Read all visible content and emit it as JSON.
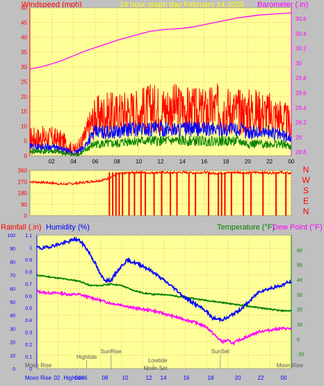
{
  "header": {
    "left_label": "Windspeed (mph)",
    "center_title": "24 hour graph day   February 14 2020",
    "right_label": "Barometer (.in)"
  },
  "colors": {
    "plot_bg": "#ffff99",
    "grid": "#e0d070",
    "axis_red": "#ff0000",
    "magenta": "#ff00ff",
    "blue": "#0000ff",
    "green": "#008000",
    "yellow_title": "#ffff00"
  },
  "chart_data": [
    {
      "type": "line",
      "title": "24 hour graph day   February 14 2020",
      "x_ticks": [
        "02",
        "04",
        "06",
        "08",
        "10",
        "12",
        "14",
        "16",
        "18",
        "20",
        "22",
        "00"
      ],
      "xlim": [
        0,
        24
      ],
      "y_left": {
        "label": "Windspeed (mph)",
        "ticks": [
          0,
          5,
          10,
          15,
          20,
          25,
          30,
          35,
          40,
          45,
          50
        ],
        "lim": [
          0,
          50
        ]
      },
      "y_right": {
        "label": "Barometer (.in)",
        "ticks": [
          "28.8",
          "29",
          "29.2",
          "29.4",
          "29.6",
          "29.8",
          "30",
          "30.2",
          "30.4",
          "30.6"
        ],
        "lim": [
          28.75,
          30.75
        ]
      },
      "grid": true,
      "barometer": {
        "x": [
          0,
          1,
          2,
          3,
          4,
          5,
          6,
          7,
          8,
          9,
          10,
          11,
          12,
          13,
          14,
          15,
          16,
          17,
          18,
          19,
          20,
          21,
          22,
          23,
          24
        ],
        "y": [
          29.92,
          29.95,
          29.99,
          30.04,
          30.1,
          30.16,
          30.21,
          30.26,
          30.31,
          30.35,
          30.39,
          30.43,
          30.45,
          30.46,
          30.47,
          30.49,
          30.52,
          30.55,
          30.58,
          30.61,
          30.63,
          30.65,
          30.66,
          30.67,
          30.68
        ]
      },
      "wind_gust": {
        "x": [
          0,
          1,
          2,
          3,
          3.5,
          4,
          4.5,
          5,
          5.5,
          6,
          7,
          8,
          9,
          10,
          11,
          12,
          13,
          14,
          15,
          16,
          17,
          18,
          19,
          20,
          21,
          22,
          23,
          24
        ],
        "y": [
          6,
          6,
          6,
          5,
          3,
          2,
          3,
          6,
          10,
          13,
          14,
          14,
          15,
          15,
          16,
          16,
          16,
          16,
          15,
          15,
          16,
          16,
          15,
          15,
          15,
          14,
          13,
          10
        ]
      },
      "wind_avg": {
        "x": [
          0,
          1,
          2,
          3,
          3.5,
          4,
          4.5,
          5,
          5.5,
          6,
          7,
          8,
          9,
          10,
          11,
          12,
          13,
          14,
          15,
          16,
          17,
          18,
          19,
          20,
          21,
          22,
          23,
          24
        ],
        "y": [
          3,
          3,
          3,
          2,
          1.5,
          1,
          1.5,
          3,
          6,
          8,
          8,
          8,
          9,
          9,
          9,
          9,
          9,
          9,
          9,
          9,
          9,
          9,
          9,
          8,
          8,
          8,
          7,
          6
        ]
      },
      "wind_low": {
        "x": [
          0,
          1,
          2,
          3,
          3.5,
          4,
          4.5,
          5,
          5.5,
          6,
          7,
          8,
          9,
          10,
          11,
          12,
          13,
          14,
          15,
          16,
          17,
          18,
          19,
          20,
          21,
          22,
          23,
          24
        ],
        "y": [
          1.5,
          1.5,
          1.5,
          1,
          0.5,
          0.3,
          0.5,
          1.5,
          3,
          4,
          4,
          4,
          5,
          5,
          5,
          5,
          5,
          5,
          5,
          5,
          5,
          5,
          5,
          4,
          4,
          4,
          4,
          3
        ]
      }
    },
    {
      "type": "line",
      "x_ticks": [
        "02",
        "04",
        "06",
        "08",
        "10",
        "12",
        "14",
        "16",
        "18",
        "20",
        "22",
        "00"
      ],
      "xlim": [
        0,
        24
      ],
      "y_left": {
        "ticks": [
          0,
          90,
          180,
          270,
          360
        ],
        "lim": [
          0,
          360
        ]
      },
      "right_labels": [
        "N",
        "W",
        "S",
        "E",
        "N"
      ],
      "wind_direction": {
        "x": [
          0,
          1,
          2,
          3,
          4,
          5,
          6,
          6.5,
          7,
          8,
          9,
          10,
          11,
          12,
          13,
          14,
          15,
          16,
          17,
          18,
          19,
          20,
          21,
          22,
          23,
          24
        ],
        "y": [
          270,
          265,
          260,
          250,
          255,
          265,
          275,
          280,
          290,
          330,
          340,
          345,
          340,
          345,
          340,
          345,
          340,
          345,
          335,
          340,
          345,
          340,
          345,
          340,
          345,
          335
        ]
      },
      "wind_direction_spikes_to_zero_x": [
        7.3,
        7.6,
        7.9,
        8.2,
        8.5,
        9.1,
        9.6,
        10.2,
        10.6,
        11.4,
        12.1,
        12.9,
        13.5,
        14.6,
        15.2,
        16.4,
        17.3,
        17.6,
        17.9,
        18.5,
        19.6,
        20.3,
        21.4,
        22.6,
        23.5
      ]
    },
    {
      "type": "line",
      "x_ticks": [
        "02",
        "04",
        "06",
        "08",
        "10",
        "12",
        "14",
        "16",
        "18",
        "20",
        "22",
        "00"
      ],
      "xlim": [
        0,
        24
      ],
      "y_rain": {
        "label": "Rainfall (.in)",
        "ticks": [
          "0",
          "0.1",
          "0.2",
          "0.3",
          "0.4",
          "0.5",
          "0.6",
          "0.7",
          "0.8",
          "0.9",
          "1",
          "1.1"
        ],
        "lim": [
          0,
          1.1
        ]
      },
      "y_humidity": {
        "label": "Humidity (%)",
        "ticks": [
          0,
          10,
          20,
          30,
          40,
          50,
          60,
          70,
          80,
          90,
          100
        ],
        "lim": [
          0,
          100
        ]
      },
      "y_temp": {
        "label": "Temperature (°F)",
        "ticks": [
          -10,
          0,
          10,
          20,
          30,
          40,
          50,
          60
        ],
        "lim": [
          -20,
          70
        ]
      },
      "dew_label": "Dew Point (°F)",
      "humidity": {
        "x": [
          0,
          0.5,
          1,
          2,
          3,
          3.5,
          4,
          4.5,
          5,
          5.5,
          6,
          6.5,
          7,
          7.5,
          8,
          8.5,
          9,
          10,
          11,
          12,
          13,
          14,
          15,
          16,
          16.5,
          17,
          17.5,
          18,
          18.5,
          19,
          20,
          21,
          22,
          23,
          23.5,
          24
        ],
        "y": [
          91,
          90,
          91,
          93,
          95,
          97,
          96,
          92,
          86,
          79,
          70,
          66,
          66,
          72,
          77,
          81,
          80,
          77,
          72,
          66,
          60,
          53,
          48,
          43,
          38,
          37,
          37,
          38,
          41,
          43,
          50,
          58,
          60,
          62,
          64,
          65
        ]
      },
      "temperature": {
        "x": [
          0,
          1,
          2,
          3,
          4,
          5,
          6,
          7,
          8,
          9,
          10,
          11,
          12,
          13,
          14,
          15,
          16,
          17,
          18,
          19,
          20,
          21,
          22,
          23,
          24
        ],
        "y": [
          43,
          42,
          41,
          40,
          39,
          36,
          36,
          37,
          36,
          33,
          31,
          30,
          30,
          29,
          28,
          27,
          26,
          25,
          24,
          23,
          22,
          21,
          20,
          19,
          19
        ]
      },
      "dew_point": {
        "x": [
          0,
          1,
          2,
          3,
          4,
          5,
          6,
          7,
          8,
          9,
          10,
          11,
          12,
          13,
          14,
          15,
          16,
          17,
          17.5,
          18,
          18.5,
          19,
          20,
          21,
          22,
          23,
          24
        ],
        "y": [
          32,
          31,
          31,
          30,
          30,
          28,
          26,
          24,
          23,
          21,
          20,
          19,
          17,
          15,
          13,
          11,
          8,
          1,
          -2,
          -1,
          -3,
          -1,
          2,
          5,
          6,
          7,
          7
        ]
      },
      "events": [
        {
          "label": "Moon Rise",
          "x": 0.2
        },
        {
          "label": "Hightide",
          "x": 4.7
        },
        {
          "label": "SunRise",
          "x": 7.0
        },
        {
          "label": "Lowtide",
          "x": 11.0
        },
        {
          "label": "Moon Set",
          "x": 10.4
        },
        {
          "label": "SunSet",
          "x": 17.3
        },
        {
          "label": "Moon Rise",
          "x": 23.8
        }
      ],
      "bottom_axis_labels": [
        "Moon Rise",
        "02",
        "04",
        "Hightide",
        "06",
        "08",
        "10",
        "12",
        "14",
        "16",
        "18",
        "20",
        "22",
        "00"
      ]
    }
  ],
  "panels": {
    "p3_left_label": "Rainfall (.in)",
    "p3_humidity_label": "Humidity (%)",
    "p3_temp_label": "Temperature (°F)",
    "p3_dew_label": "Dew Point (°F)"
  }
}
